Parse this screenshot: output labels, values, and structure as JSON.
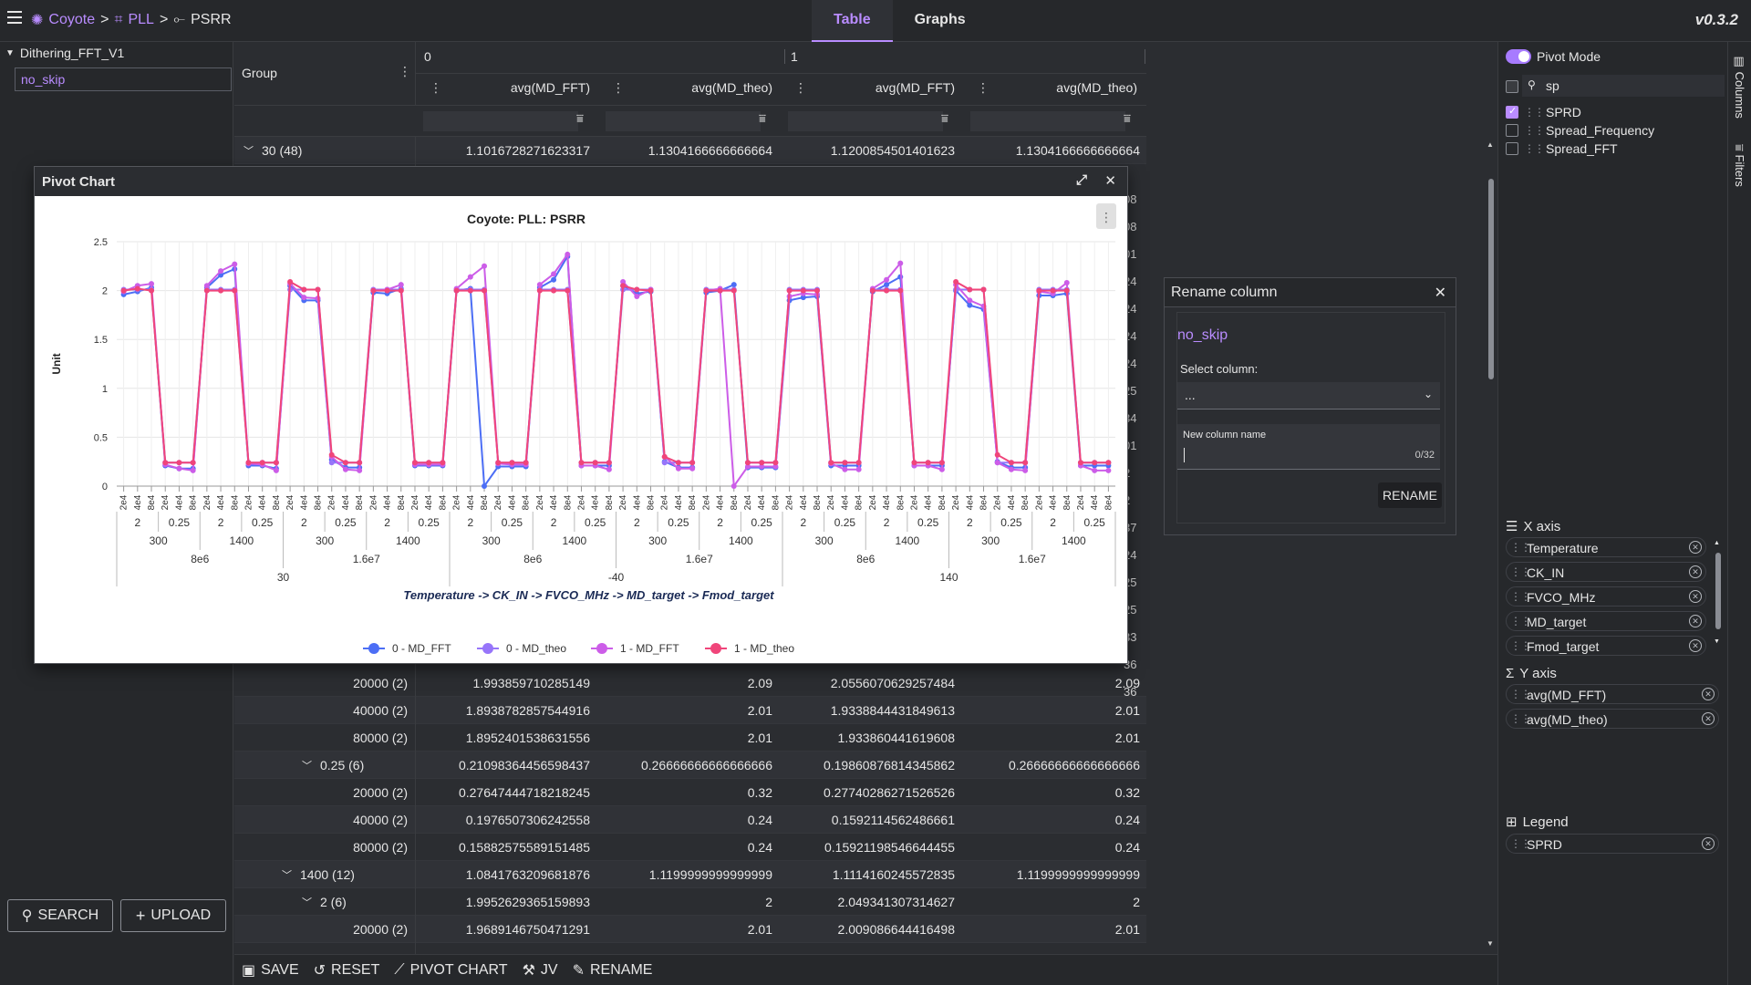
{
  "topbar": {
    "breadcrumb": [
      "Coyote",
      "PLL",
      "PSRR"
    ],
    "tabs": [
      {
        "label": "Table",
        "active": true
      },
      {
        "label": "Graphs",
        "active": false
      }
    ],
    "version": "v0.3.2"
  },
  "sidebar": {
    "tree_root": "Dithering_FFT_V1",
    "selected_item": "no_skip",
    "search_label": "SEARCH",
    "upload_label": "UPLOAD"
  },
  "grid": {
    "group_header": "Group",
    "pivot_groups": [
      "0",
      "1"
    ],
    "columns": [
      "avg(MD_FFT)",
      "avg(MD_theo)",
      "avg(MD_FFT)",
      "avg(MD_theo)"
    ],
    "top_row": {
      "group": "30 (48)",
      "values": [
        "1.1016728271623317",
        "1.1304166666666664",
        "1.1200854501401623",
        "1.1304166666666664"
      ]
    },
    "hidden_partial_values": [
      "08",
      "08",
      "01",
      "24",
      "24",
      "24",
      "24",
      "25",
      "34",
      "01",
      "2",
      "2",
      "37",
      "24",
      "25",
      "25",
      "33",
      "36",
      "36"
    ],
    "rows": [
      {
        "group": "20000 (2)",
        "values": [
          "1.993859710285149",
          "2.09",
          "2.0556070629257484",
          "2.09"
        ],
        "indent": 0
      },
      {
        "group": "40000 (2)",
        "values": [
          "1.8938782857544916",
          "2.01",
          "1.9338844431849613",
          "2.01"
        ],
        "indent": 0
      },
      {
        "group": "80000 (2)",
        "values": [
          "1.8952401538631556",
          "2.01",
          "1.933860441619608",
          "2.01"
        ],
        "indent": 0
      },
      {
        "group": "0.25 (6)",
        "values": [
          "0.21098364456598437",
          "0.26666666666666666",
          "0.19860876814345862",
          "0.26666666666666666"
        ],
        "indent": 1,
        "expander": true
      },
      {
        "group": "20000 (2)",
        "values": [
          "0.27647444718218245",
          "0.32",
          "0.27740286271526526",
          "0.32"
        ],
        "indent": 0
      },
      {
        "group": "40000 (2)",
        "values": [
          "0.1976507306242558",
          "0.24",
          "0.1592114562486661",
          "0.24"
        ],
        "indent": 0
      },
      {
        "group": "80000 (2)",
        "values": [
          "0.15882575589151485",
          "0.24",
          "0.15921198546644455",
          "0.24"
        ],
        "indent": 0
      },
      {
        "group": "1400 (12)",
        "values": [
          "1.0841763209681876",
          "1.1199999999999999",
          "1.1114160245572835",
          "1.1199999999999999"
        ],
        "indent": 2,
        "expander": true
      },
      {
        "group": "2 (6)",
        "values": [
          "1.9952629365159893",
          "2",
          "2.049341307314627",
          "2"
        ],
        "indent": 1,
        "expander": true
      },
      {
        "group": "20000 (2)",
        "values": [
          "1.9689146750471291",
          "2.01",
          "2.009086644416498",
          "2.01"
        ],
        "indent": 0
      }
    ]
  },
  "bottombar": {
    "buttons": [
      "SAVE",
      "RESET",
      "PIVOT CHART",
      "JV",
      "RENAME"
    ]
  },
  "pivot_chart": {
    "window_title": "Pivot Chart"
  },
  "chart_data": {
    "type": "line",
    "title": "Coyote: PLL: PSRR",
    "xlabel": "Temperature -> CK_IN -> FVCO_MHz -> MD_target -> Fmod_target",
    "ylabel": "Unit",
    "ylim": [
      0,
      2.5
    ],
    "yticks": [
      "0",
      "0.5",
      "1",
      "1.5",
      "2",
      "2.5"
    ],
    "grid": true,
    "legend_position": "bottom",
    "x_levels": {
      "fmod_pattern": [
        "2e4",
        "4e4",
        "8e4"
      ],
      "md_pattern": [
        "2",
        "0.25"
      ],
      "fvco_pattern": [
        "300",
        "1400"
      ],
      "ck_in_pattern": [
        "8e6",
        "1.6e7"
      ],
      "temperature": [
        "30",
        "-40",
        "140"
      ]
    },
    "series": [
      {
        "name": "0 - MD_FFT",
        "color": "#4c6ef5",
        "values": [
          1.96,
          1.99,
          2.03,
          0.21,
          0.18,
          0.18,
          2.03,
          2.16,
          2.22,
          0.21,
          0.21,
          0.18,
          2.05,
          1.9,
          1.9,
          0.27,
          0.19,
          0.19,
          1.98,
          1.97,
          2.02,
          0.21,
          0.21,
          0.21,
          2.0,
          2.02,
          0.0,
          0.2,
          0.2,
          0.2,
          2.03,
          2.11,
          2.35,
          0.21,
          0.21,
          0.21,
          2.05,
          1.97,
          1.99,
          0.25,
          0.19,
          0.19,
          1.98,
          2.0,
          2.06,
          0.19,
          0.19,
          0.19,
          1.9,
          1.93,
          1.94,
          0.21,
          0.21,
          0.21,
          1.99,
          2.06,
          2.14,
          0.21,
          0.21,
          0.21,
          2.0,
          1.85,
          1.81,
          0.25,
          0.19,
          0.19,
          1.95,
          1.95,
          1.97,
          0.21,
          0.21,
          0.21
        ]
      },
      {
        "name": "0 - MD_theo",
        "color": "#9775fa",
        "values": [
          2.01,
          2.01,
          2.01,
          0.24,
          0.24,
          0.24,
          2.01,
          2.01,
          2.01,
          0.24,
          0.24,
          0.24,
          2.01,
          2.01,
          2.01,
          0.24,
          0.24,
          0.24,
          2.01,
          2.01,
          2.01,
          0.24,
          0.24,
          0.24,
          2.01,
          2.01,
          2.01,
          0.24,
          0.24,
          0.24,
          2.01,
          2.01,
          2.01,
          0.24,
          0.24,
          0.24,
          2.01,
          2.01,
          2.01,
          0.24,
          0.24,
          0.24,
          2.01,
          2.01,
          2.01,
          0.24,
          0.24,
          0.24,
          2.01,
          2.01,
          2.01,
          0.24,
          0.24,
          0.24,
          2.01,
          2.01,
          2.01,
          0.24,
          0.24,
          0.24,
          2.01,
          2.01,
          2.01,
          0.24,
          0.24,
          0.24,
          2.01,
          2.01,
          2.01,
          0.24,
          0.24,
          0.24
        ]
      },
      {
        "name": "1 - MD_FFT",
        "color": "#cc5de8",
        "values": [
          1.99,
          2.05,
          2.07,
          0.22,
          0.18,
          0.16,
          2.05,
          2.2,
          2.27,
          0.23,
          0.22,
          0.16,
          2.07,
          1.93,
          1.92,
          0.3,
          0.17,
          0.16,
          2.0,
          2.01,
          2.06,
          0.22,
          0.22,
          0.22,
          2.02,
          2.14,
          2.25,
          0.23,
          0.22,
          0.22,
          2.06,
          2.17,
          2.37,
          0.21,
          0.21,
          0.17,
          2.09,
          1.94,
          2.01,
          0.3,
          0.18,
          0.18,
          2.0,
          2.02,
          0.0,
          0.2,
          0.2,
          0.2,
          1.94,
          1.97,
          1.96,
          0.23,
          0.17,
          0.17,
          2.02,
          2.11,
          2.28,
          0.21,
          0.21,
          0.17,
          2.06,
          1.9,
          1.84,
          0.24,
          0.17,
          0.16,
          1.99,
          1.97,
          2.08,
          0.21,
          0.16,
          0.16
        ]
      },
      {
        "name": "1 - MD_theo",
        "color": "#f0457a",
        "values": [
          2.0,
          2.02,
          2.0,
          0.24,
          0.24,
          0.24,
          2.0,
          2.0,
          2.0,
          0.24,
          0.24,
          0.24,
          2.09,
          2.01,
          2.01,
          0.32,
          0.24,
          0.24,
          2.0,
          2.0,
          2.0,
          0.24,
          0.24,
          0.24,
          2.0,
          2.0,
          2.0,
          0.24,
          0.24,
          0.24,
          2.0,
          2.0,
          2.0,
          0.24,
          0.24,
          0.24,
          2.05,
          2.01,
          2.0,
          0.3,
          0.24,
          0.24,
          2.0,
          2.0,
          2.0,
          0.24,
          0.24,
          0.24,
          2.0,
          2.0,
          2.0,
          0.24,
          0.24,
          0.24,
          2.0,
          2.0,
          2.0,
          0.24,
          0.24,
          0.24,
          2.09,
          2.01,
          2.01,
          0.32,
          0.24,
          0.24,
          2.0,
          2.0,
          2.0,
          0.24,
          0.24,
          0.24
        ]
      }
    ]
  },
  "rename_dialog": {
    "title": "Rename column",
    "table_name": "no_skip",
    "select_label": "Select column:",
    "select_value": "...",
    "new_name_label": "New column name",
    "counter": "0/32",
    "button": "RENAME"
  },
  "right_panel": {
    "pivot_mode_label": "Pivot Mode",
    "search_value": "sp",
    "columns": [
      {
        "label": "SPRD",
        "checked": true
      },
      {
        "label": "Spread_Frequency",
        "checked": false
      },
      {
        "label": "Spread_FFT",
        "checked": false
      }
    ],
    "x_axis_label": "X axis",
    "x_axis_items": [
      "Temperature",
      "CK_IN",
      "FVCO_MHz",
      "MD_target",
      "Fmod_target"
    ],
    "y_axis_label": "Y axis",
    "y_axis_items": [
      "avg(MD_FFT)",
      "avg(MD_theo)"
    ],
    "legend_label": "Legend",
    "legend_items": [
      "SPRD"
    ],
    "side_tabs": [
      "Columns",
      "Filters"
    ]
  }
}
